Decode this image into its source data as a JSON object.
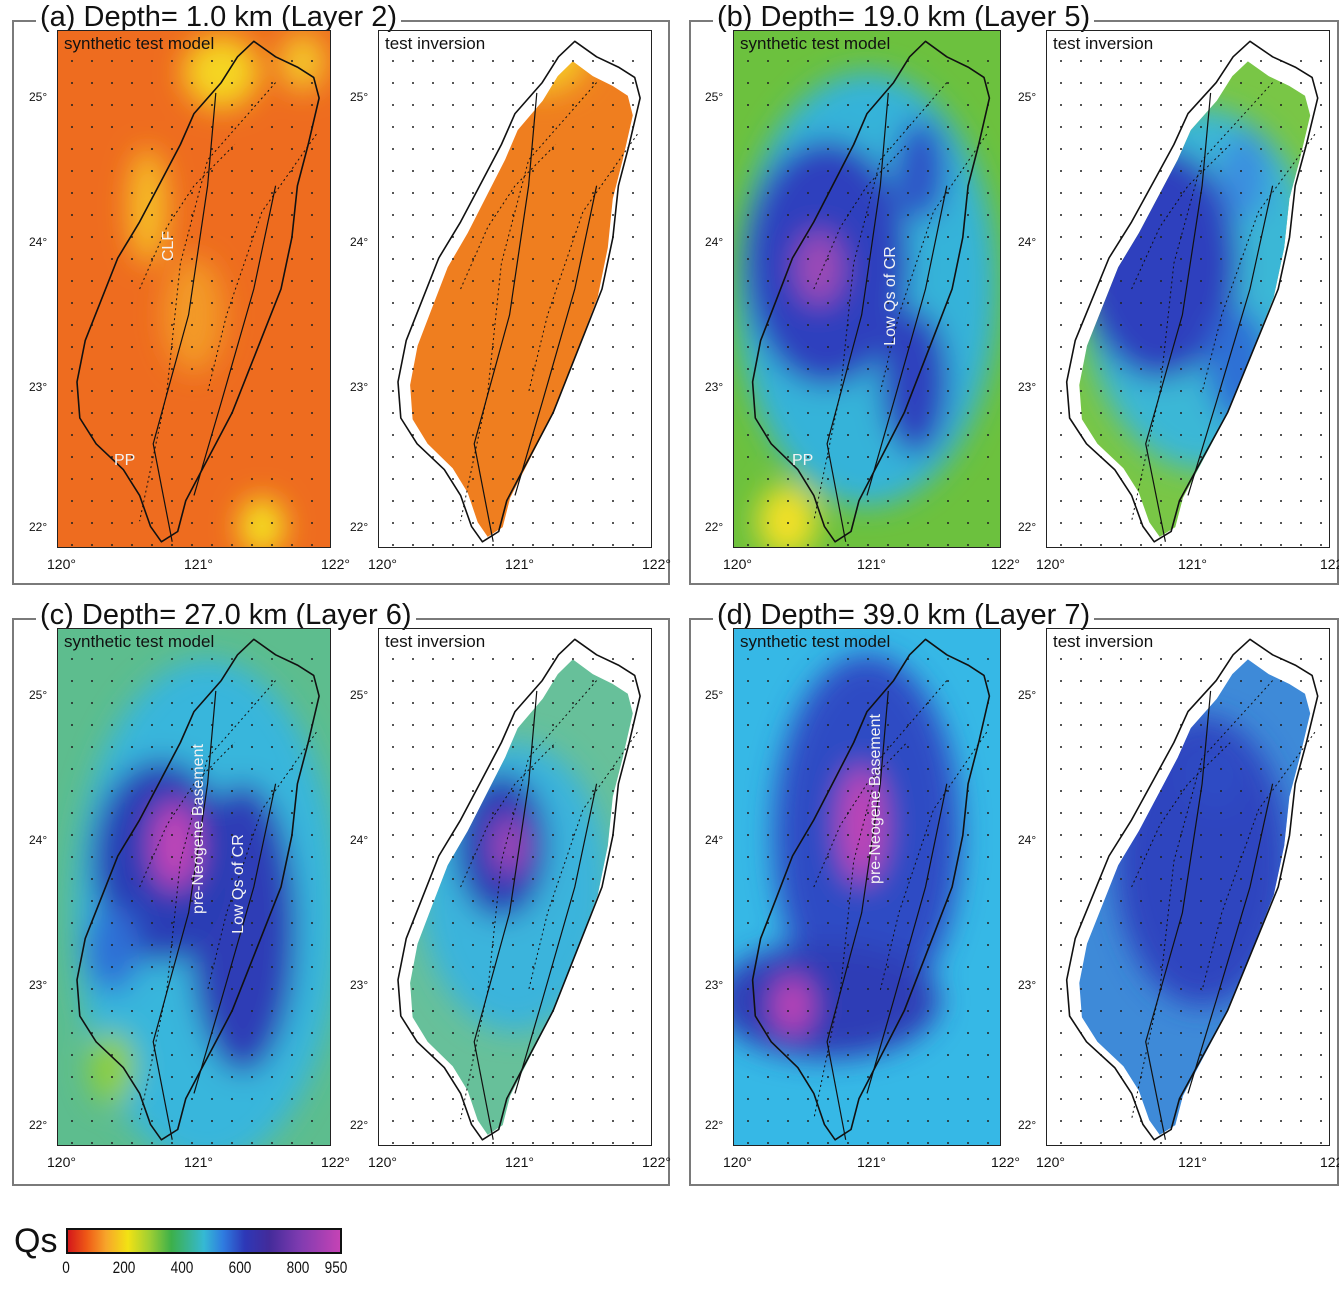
{
  "colorbar": {
    "label": "Qs",
    "ticks": [
      "0",
      "200",
      "400",
      "600",
      "800",
      "950"
    ],
    "tick_values": [
      0,
      200,
      400,
      600,
      800,
      950
    ],
    "min": 0,
    "max": 950,
    "stops": [
      "#d4181a",
      "#ef5a16",
      "#f7a52a",
      "#f2e214",
      "#9fcf33",
      "#3cb04a",
      "#35b9d4",
      "#2f7ce0",
      "#2d38b7",
      "#432b9a",
      "#7e3bb0",
      "#c543b5"
    ]
  },
  "axes": {
    "lon_ticks": [
      "120°",
      "121°",
      "122°"
    ],
    "lat_ticks": [
      "25°",
      "24°",
      "23°",
      "22°"
    ],
    "lon_range": [
      120,
      122
    ],
    "lat_range": [
      21.9,
      25.3
    ]
  },
  "panels": [
    {
      "id": "a",
      "title": "(a) Depth= 1.0 km (Layer 2)",
      "depth_km": 1.0,
      "layer": 2,
      "model_label": "synthetic test model",
      "inversion_label": "test inversion",
      "background": "#ee6c1f",
      "inversion_fill": "#ef7e1f",
      "annotations": [
        "CLF",
        "PP"
      ]
    },
    {
      "id": "b",
      "title": "(b) Depth= 19.0 km (Layer 5)",
      "depth_km": 19.0,
      "layer": 5,
      "model_label": "synthetic test model",
      "inversion_label": "test inversion",
      "background": "#6cc13e",
      "inversion_fill": "#79c646",
      "annotations": [
        "Low Qs of CR",
        "PP"
      ]
    },
    {
      "id": "c",
      "title": "(c) Depth= 27.0 km (Layer 6)",
      "depth_km": 27.0,
      "layer": 6,
      "model_label": "synthetic test model",
      "inversion_label": "test inversion",
      "background": "#5dbd8e",
      "inversion_fill": "#67c09a",
      "annotations": [
        "pre-Neogene Basement",
        "Low Qs of CR"
      ]
    },
    {
      "id": "d",
      "title": "(d) Depth= 39.0 km (Layer 7)",
      "depth_km": 39.0,
      "layer": 7,
      "model_label": "synthetic test model",
      "inversion_label": "test inversion",
      "background": "#36b8e6",
      "inversion_fill": "#3e8ad8",
      "annotations": [
        "pre-Neogene Basement"
      ]
    }
  ]
}
